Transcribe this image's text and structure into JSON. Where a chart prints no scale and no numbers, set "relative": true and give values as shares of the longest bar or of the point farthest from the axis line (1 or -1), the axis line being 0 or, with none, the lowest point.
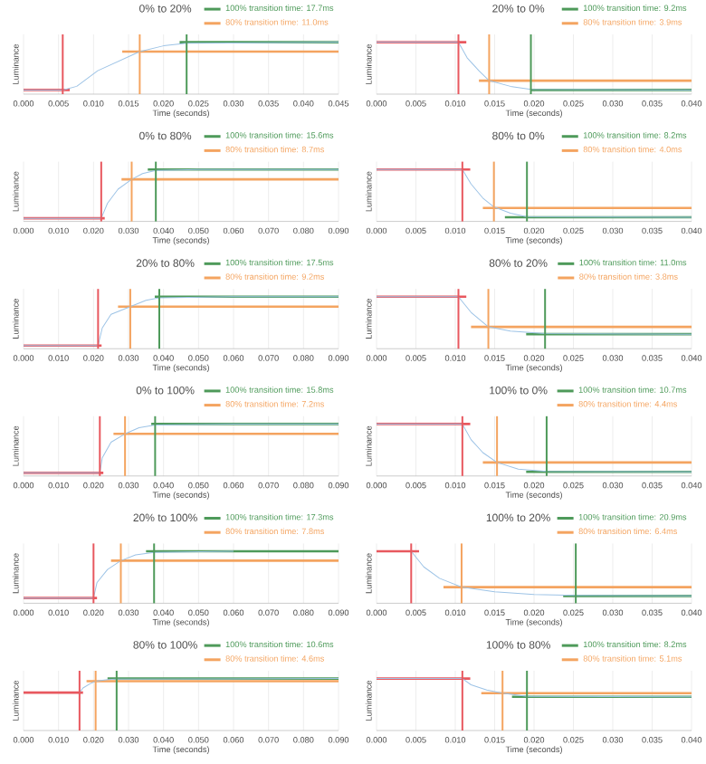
{
  "chart_data": [
    {
      "type": "line",
      "title": "0% to 20%",
      "xlabel": "Time (seconds)",
      "ylabel": "Luminance",
      "relative": true,
      "grid": "x",
      "legend": "top right",
      "xlim": [
        0,
        0.045
      ],
      "xticks": [
        {
          "value": 0,
          "label": "0.000"
        },
        {
          "value": 0.005,
          "label": "0.005"
        },
        {
          "value": 0.01,
          "label": "0.010"
        },
        {
          "value": 0.015,
          "label": "0.015"
        },
        {
          "value": 0.02,
          "label": "0.020"
        },
        {
          "value": 0.025,
          "label": "0.025"
        },
        {
          "value": 0.03,
          "label": "0.030"
        },
        {
          "value": 0.035,
          "label": "0.035"
        },
        {
          "value": 0.04,
          "label": "0.040"
        },
        {
          "value": 0.045,
          "label": "0.045"
        }
      ],
      "series": [
        {
          "color": "#9dc3e6",
          "x": [
            0,
            0.0056,
            0.0076,
            0.0106,
            0.0166,
            0.02,
            0.0233,
            0.045
          ],
          "values": [
            0.08,
            0.08,
            0.15,
            0.45,
            0.82,
            0.93,
            0.98,
            1
          ]
        },
        {
          "color": "#e8585f",
          "x": [
            0,
            0.0066
          ],
          "values": [
            0.08,
            0.08
          ]
        },
        {
          "name": "100% transition time: 17.7ms",
          "color": "#4e9a5a",
          "x": [
            0.0223,
            0.045
          ],
          "values": [
            1,
            1
          ]
        },
        {
          "name": "80% transition time: 11.0ms",
          "color": "#f4a460",
          "x": [
            0.0141,
            0.045
          ],
          "values": [
            0.82,
            0.82
          ]
        }
      ],
      "ref_lines": [
        {
          "axis": "x",
          "value": 0.0056,
          "color": "#e8585f"
        },
        {
          "axis": "x",
          "value": 0.0166,
          "color": "#f4a460"
        },
        {
          "axis": "x",
          "value": 0.0233,
          "color": "#4e9a5a"
        }
      ]
    },
    {
      "type": "line",
      "title": "20% to 0%",
      "xlabel": "Time (seconds)",
      "ylabel": "Luminance",
      "relative": true,
      "grid": "x",
      "legend": "top right",
      "xlim": [
        0,
        0.04
      ],
      "xticks": [
        {
          "value": 0,
          "label": "0.000"
        },
        {
          "value": 0.005,
          "label": "0.005"
        },
        {
          "value": 0.01,
          "label": "0.010"
        },
        {
          "value": 0.015,
          "label": "0.015"
        },
        {
          "value": 0.02,
          "label": "0.020"
        },
        {
          "value": 0.025,
          "label": "0.025"
        },
        {
          "value": 0.03,
          "label": "0.030"
        },
        {
          "value": 0.035,
          "label": "0.035"
        },
        {
          "value": 0.04,
          "label": "0.040"
        }
      ],
      "series": [
        {
          "color": "#9dc3e6",
          "x": [
            0,
            0.0104,
            0.0115,
            0.013,
            0.0143,
            0.017,
            0.0196,
            0.04
          ],
          "values": [
            1,
            1,
            0.7,
            0.45,
            0.26,
            0.15,
            0.09,
            0.08
          ]
        },
        {
          "color": "#e8585f",
          "x": [
            0,
            0.0114
          ],
          "values": [
            1,
            1
          ]
        },
        {
          "name": "100% transition time: 9.2ms",
          "color": "#4e9a5a",
          "x": [
            0.0196,
            0.04
          ],
          "values": [
            0.08,
            0.08
          ]
        },
        {
          "name": "80% transition time: 3.9ms",
          "color": "#f4a460",
          "x": [
            0.013,
            0.04
          ],
          "values": [
            0.26,
            0.26
          ]
        }
      ],
      "ref_lines": [
        {
          "axis": "x",
          "value": 0.0104,
          "color": "#e8585f"
        },
        {
          "axis": "x",
          "value": 0.0143,
          "color": "#f4a460"
        },
        {
          "axis": "x",
          "value": 0.0196,
          "color": "#4e9a5a"
        }
      ]
    },
    {
      "type": "line",
      "title": "0% to 80%",
      "xlabel": "Time (seconds)",
      "ylabel": "Luminance",
      "relative": true,
      "grid": "x",
      "legend": "top right",
      "xlim": [
        0,
        0.09
      ],
      "xticks": [
        {
          "value": 0,
          "label": "0.000"
        },
        {
          "value": 0.01,
          "label": "0.010"
        },
        {
          "value": 0.02,
          "label": "0.020"
        },
        {
          "value": 0.03,
          "label": "0.030"
        },
        {
          "value": 0.04,
          "label": "0.040"
        },
        {
          "value": 0.05,
          "label": "0.050"
        },
        {
          "value": 0.06,
          "label": "0.060"
        },
        {
          "value": 0.07,
          "label": "0.070"
        },
        {
          "value": 0.08,
          "label": "0.080"
        },
        {
          "value": 0.09,
          "label": "0.090"
        }
      ],
      "series": [
        {
          "color": "#9dc3e6",
          "x": [
            0,
            0.0222,
            0.024,
            0.027,
            0.0309,
            0.034,
            0.0378,
            0.05,
            0.09
          ],
          "values": [
            0.06,
            0.06,
            0.35,
            0.62,
            0.81,
            0.92,
            0.98,
            1,
            1
          ]
        },
        {
          "color": "#e8585f",
          "x": [
            0,
            0.0232
          ],
          "values": [
            0.06,
            0.06
          ]
        },
        {
          "name": "100% transition time: 15.6ms",
          "color": "#4e9a5a",
          "x": [
            0.0355,
            0.09
          ],
          "values": [
            1,
            1
          ]
        },
        {
          "name": "80% transition time: 8.7ms",
          "color": "#f4a460",
          "x": [
            0.028,
            0.09
          ],
          "values": [
            0.81,
            0.81
          ]
        }
      ],
      "ref_lines": [
        {
          "axis": "x",
          "value": 0.0222,
          "color": "#e8585f"
        },
        {
          "axis": "x",
          "value": 0.0309,
          "color": "#f4a460"
        },
        {
          "axis": "x",
          "value": 0.0378,
          "color": "#4e9a5a"
        }
      ]
    },
    {
      "type": "line",
      "title": "80% to 0%",
      "xlabel": "Time (seconds)",
      "ylabel": "Luminance",
      "relative": true,
      "grid": "x",
      "legend": "top right",
      "xlim": [
        0,
        0.04
      ],
      "xticks": [
        {
          "value": 0,
          "label": "0.000"
        },
        {
          "value": 0.005,
          "label": "0.005"
        },
        {
          "value": 0.01,
          "label": "0.010"
        },
        {
          "value": 0.015,
          "label": "0.015"
        },
        {
          "value": 0.02,
          "label": "0.020"
        },
        {
          "value": 0.025,
          "label": "0.025"
        },
        {
          "value": 0.03,
          "label": "0.030"
        },
        {
          "value": 0.035,
          "label": "0.035"
        },
        {
          "value": 0.04,
          "label": "0.040"
        }
      ],
      "series": [
        {
          "color": "#9dc3e6",
          "x": [
            0,
            0.0109,
            0.012,
            0.0135,
            0.0149,
            0.017,
            0.0191,
            0.04
          ],
          "values": [
            1,
            1,
            0.72,
            0.45,
            0.28,
            0.16,
            0.09,
            0.08
          ]
        },
        {
          "color": "#e8585f",
          "x": [
            0,
            0.0119
          ],
          "values": [
            1,
            1
          ]
        },
        {
          "name": "100% transition time: 8.2ms",
          "color": "#4e9a5a",
          "x": [
            0.0163,
            0.04
          ],
          "values": [
            0.08,
            0.08
          ]
        },
        {
          "name": "80% transition time: 4.0ms",
          "color": "#f4a460",
          "x": [
            0.0135,
            0.04
          ],
          "values": [
            0.26,
            0.26
          ]
        }
      ],
      "ref_lines": [
        {
          "axis": "x",
          "value": 0.0109,
          "color": "#e8585f"
        },
        {
          "axis": "x",
          "value": 0.0149,
          "color": "#f4a460"
        },
        {
          "axis": "x",
          "value": 0.0191,
          "color": "#4e9a5a"
        }
      ]
    },
    {
      "type": "line",
      "title": "20% to 80%",
      "xlabel": "Time (seconds)",
      "ylabel": "Luminance",
      "relative": true,
      "grid": "x",
      "legend": "top right",
      "xlim": [
        0,
        0.09
      ],
      "xticks": [
        {
          "value": 0,
          "label": "0.000"
        },
        {
          "value": 0.01,
          "label": "0.010"
        },
        {
          "value": 0.02,
          "label": "0.020"
        },
        {
          "value": 0.03,
          "label": "0.030"
        },
        {
          "value": 0.04,
          "label": "0.040"
        },
        {
          "value": 0.05,
          "label": "0.050"
        },
        {
          "value": 0.06,
          "label": "0.060"
        },
        {
          "value": 0.07,
          "label": "0.070"
        },
        {
          "value": 0.08,
          "label": "0.080"
        },
        {
          "value": 0.09,
          "label": "0.090"
        }
      ],
      "series": [
        {
          "color": "#9dc3e6",
          "x": [
            0,
            0.0213,
            0.0225,
            0.025,
            0.0305,
            0.035,
            0.0388,
            0.06,
            0.09
          ],
          "values": [
            0.06,
            0.06,
            0.4,
            0.66,
            0.81,
            0.93,
            0.98,
            1,
            1
          ]
        },
        {
          "color": "#e8585f",
          "x": [
            0,
            0.0223
          ],
          "values": [
            0.06,
            0.06
          ]
        },
        {
          "name": "100% transition time: 17.5ms",
          "color": "#4e9a5a",
          "x": [
            0.0375,
            0.09
          ],
          "values": [
            1,
            1
          ]
        },
        {
          "name": "80% transition time: 9.2ms",
          "color": "#f4a460",
          "x": [
            0.027,
            0.09
          ],
          "values": [
            0.81,
            0.81
          ]
        }
      ],
      "ref_lines": [
        {
          "axis": "x",
          "value": 0.0213,
          "color": "#e8585f"
        },
        {
          "axis": "x",
          "value": 0.0305,
          "color": "#f4a460"
        },
        {
          "axis": "x",
          "value": 0.0388,
          "color": "#4e9a5a"
        }
      ]
    },
    {
      "type": "line",
      "title": "80% to 20%",
      "xlabel": "Time (seconds)",
      "ylabel": "Luminance",
      "relative": true,
      "grid": "x",
      "legend": "top right",
      "xlim": [
        0,
        0.04
      ],
      "xticks": [
        {
          "value": 0,
          "label": "0.000"
        },
        {
          "value": 0.005,
          "label": "0.005"
        },
        {
          "value": 0.01,
          "label": "0.010"
        },
        {
          "value": 0.015,
          "label": "0.015"
        },
        {
          "value": 0.02,
          "label": "0.020"
        },
        {
          "value": 0.025,
          "label": "0.025"
        },
        {
          "value": 0.03,
          "label": "0.030"
        },
        {
          "value": 0.035,
          "label": "0.035"
        },
        {
          "value": 0.04,
          "label": "0.040"
        }
      ],
      "series": [
        {
          "color": "#9dc3e6",
          "x": [
            0,
            0.0104,
            0.012,
            0.0142,
            0.017,
            0.0214,
            0.04
          ],
          "values": [
            1,
            1,
            0.7,
            0.42,
            0.34,
            0.29,
            0.28
          ]
        },
        {
          "color": "#e8585f",
          "x": [
            0,
            0.0114
          ],
          "values": [
            1,
            1
          ]
        },
        {
          "name": "100% transition time: 11.0ms",
          "color": "#4e9a5a",
          "x": [
            0.019,
            0.04
          ],
          "values": [
            0.28,
            0.28
          ]
        },
        {
          "name": "80% transition time: 3.8ms",
          "color": "#f4a460",
          "x": [
            0.012,
            0.04
          ],
          "values": [
            0.42,
            0.42
          ]
        }
      ],
      "ref_lines": [
        {
          "axis": "x",
          "value": 0.0104,
          "color": "#e8585f"
        },
        {
          "axis": "x",
          "value": 0.0142,
          "color": "#f4a460"
        },
        {
          "axis": "x",
          "value": 0.0214,
          "color": "#4e9a5a"
        }
      ]
    },
    {
      "type": "line",
      "title": "0% to 100%",
      "xlabel": "Time (seconds)",
      "ylabel": "Luminance",
      "relative": true,
      "grid": "x",
      "legend": "top right",
      "xlim": [
        0,
        0.09
      ],
      "xticks": [
        {
          "value": 0,
          "label": "0.000"
        },
        {
          "value": 0.01,
          "label": "0.010"
        },
        {
          "value": 0.02,
          "label": "0.020"
        },
        {
          "value": 0.03,
          "label": "0.030"
        },
        {
          "value": 0.04,
          "label": "0.040"
        },
        {
          "value": 0.05,
          "label": "0.050"
        },
        {
          "value": 0.06,
          "label": "0.060"
        },
        {
          "value": 0.07,
          "label": "0.070"
        },
        {
          "value": 0.08,
          "label": "0.080"
        },
        {
          "value": 0.09,
          "label": "0.090"
        }
      ],
      "series": [
        {
          "color": "#9dc3e6",
          "x": [
            0,
            0.0218,
            0.0225,
            0.025,
            0.029,
            0.033,
            0.0376,
            0.06,
            0.09
          ],
          "values": [
            0.06,
            0.06,
            0.35,
            0.65,
            0.81,
            0.93,
            0.98,
            1,
            1
          ]
        },
        {
          "color": "#e8585f",
          "x": [
            0,
            0.0228
          ],
          "values": [
            0.06,
            0.06
          ]
        },
        {
          "name": "100% transition time: 15.8ms",
          "color": "#4e9a5a",
          "x": [
            0.0365,
            0.09
          ],
          "values": [
            1,
            1
          ]
        },
        {
          "name": "80% transition time: 7.2ms",
          "color": "#f4a460",
          "x": [
            0.0257,
            0.09
          ],
          "values": [
            0.81,
            0.81
          ]
        }
      ],
      "ref_lines": [
        {
          "axis": "x",
          "value": 0.0218,
          "color": "#e8585f"
        },
        {
          "axis": "x",
          "value": 0.029,
          "color": "#f4a460"
        },
        {
          "axis": "x",
          "value": 0.0376,
          "color": "#4e9a5a"
        }
      ]
    },
    {
      "type": "line",
      "title": "100% to 0%",
      "xlabel": "Time (seconds)",
      "ylabel": "Luminance",
      "relative": true,
      "grid": "x",
      "legend": "top right",
      "xlim": [
        0,
        0.04
      ],
      "xticks": [
        {
          "value": 0,
          "label": "0.000"
        },
        {
          "value": 0.005,
          "label": "0.005"
        },
        {
          "value": 0.01,
          "label": "0.010"
        },
        {
          "value": 0.015,
          "label": "0.015"
        },
        {
          "value": 0.02,
          "label": "0.020"
        },
        {
          "value": 0.025,
          "label": "0.025"
        },
        {
          "value": 0.03,
          "label": "0.030"
        },
        {
          "value": 0.035,
          "label": "0.035"
        },
        {
          "value": 0.04,
          "label": "0.040"
        }
      ],
      "series": [
        {
          "color": "#9dc3e6",
          "x": [
            0,
            0.0109,
            0.012,
            0.0135,
            0.0153,
            0.018,
            0.0216,
            0.04
          ],
          "values": [
            1,
            1,
            0.7,
            0.45,
            0.26,
            0.13,
            0.09,
            0.08
          ]
        },
        {
          "color": "#e8585f",
          "x": [
            0,
            0.0119
          ],
          "values": [
            1,
            1
          ]
        },
        {
          "name": "100% transition time: 10.7ms",
          "color": "#4e9a5a",
          "x": [
            0.019,
            0.04
          ],
          "values": [
            0.08,
            0.08
          ]
        },
        {
          "name": "80% transition time: 4.4ms",
          "color": "#f4a460",
          "x": [
            0.0135,
            0.04
          ],
          "values": [
            0.26,
            0.26
          ]
        }
      ],
      "ref_lines": [
        {
          "axis": "x",
          "value": 0.0109,
          "color": "#e8585f"
        },
        {
          "axis": "x",
          "value": 0.0153,
          "color": "#f4a460"
        },
        {
          "axis": "x",
          "value": 0.0216,
          "color": "#4e9a5a"
        }
      ]
    },
    {
      "type": "line",
      "title": "20% to 100%",
      "xlabel": "Time (seconds)",
      "ylabel": "Luminance",
      "relative": true,
      "grid": "x",
      "legend": "top right",
      "xlim": [
        0,
        0.09
      ],
      "xticks": [
        {
          "value": 0,
          "label": "0.000"
        },
        {
          "value": 0.01,
          "label": "0.010"
        },
        {
          "value": 0.02,
          "label": "0.020"
        },
        {
          "value": 0.03,
          "label": "0.030"
        },
        {
          "value": 0.04,
          "label": "0.040"
        },
        {
          "value": 0.05,
          "label": "0.050"
        },
        {
          "value": 0.06,
          "label": "0.060"
        },
        {
          "value": 0.07,
          "label": "0.070"
        },
        {
          "value": 0.08,
          "label": "0.080"
        },
        {
          "value": 0.09,
          "label": "0.090"
        }
      ],
      "series": [
        {
          "color": "#9dc3e6",
          "x": [
            0,
            0.02,
            0.021,
            0.024,
            0.0278,
            0.032,
            0.0373,
            0.06
          ],
          "values": [
            0.1,
            0.1,
            0.4,
            0.65,
            0.82,
            0.93,
            0.98,
            1
          ]
        },
        {
          "color": "#e8585f",
          "x": [
            0,
            0.021
          ],
          "values": [
            0.1,
            0.1
          ]
        },
        {
          "name": "100% transition time: 17.3ms",
          "color": "#4e9a5a",
          "x": [
            0.035,
            0.09
          ],
          "values": [
            1,
            1
          ]
        },
        {
          "name": "80% transition time: 7.8ms",
          "color": "#f4a460",
          "x": [
            0.025,
            0.09
          ],
          "values": [
            0.82,
            0.82
          ]
        }
      ],
      "ref_lines": [
        {
          "axis": "x",
          "value": 0.02,
          "color": "#e8585f"
        },
        {
          "axis": "x",
          "value": 0.0278,
          "color": "#f4a460"
        },
        {
          "axis": "x",
          "value": 0.0373,
          "color": "#4e9a5a"
        }
      ]
    },
    {
      "type": "line",
      "title": "100% to 20%",
      "xlabel": "Time (seconds)",
      "ylabel": "Luminance",
      "relative": true,
      "grid": "x",
      "legend": "top right",
      "xlim": [
        0,
        0.04
      ],
      "xticks": [
        {
          "value": 0,
          "label": "0.000"
        },
        {
          "value": 0.005,
          "label": "0.005"
        },
        {
          "value": 0.01,
          "label": "0.010"
        },
        {
          "value": 0.015,
          "label": "0.015"
        },
        {
          "value": 0.02,
          "label": "0.020"
        },
        {
          "value": 0.025,
          "label": "0.025"
        },
        {
          "value": 0.03,
          "label": "0.030"
        },
        {
          "value": 0.035,
          "label": "0.035"
        },
        {
          "value": 0.04,
          "label": "0.040"
        }
      ],
      "series": [
        {
          "color": "#9dc3e6",
          "x": [
            0.0044,
            0.006,
            0.008,
            0.0108,
            0.015,
            0.02,
            0.0253,
            0.04
          ],
          "values": [
            1,
            0.7,
            0.48,
            0.31,
            0.22,
            0.17,
            0.15,
            0.14
          ]
        },
        {
          "color": "#e8585f",
          "x": [
            0,
            0.0054
          ],
          "values": [
            1,
            1
          ]
        },
        {
          "name": "100% transition time: 20.9ms",
          "color": "#4e9a5a",
          "x": [
            0.0237,
            0.04
          ],
          "values": [
            0.14,
            0.14
          ]
        },
        {
          "name": "80% transition time: 6.4ms",
          "color": "#f4a460",
          "x": [
            0.0085,
            0.04
          ],
          "values": [
            0.31,
            0.31
          ]
        }
      ],
      "ref_lines": [
        {
          "axis": "x",
          "value": 0.0044,
          "color": "#e8585f"
        },
        {
          "axis": "x",
          "value": 0.0108,
          "color": "#f4a460"
        },
        {
          "axis": "x",
          "value": 0.0253,
          "color": "#4e9a5a"
        }
      ]
    },
    {
      "type": "line",
      "title": "80% to 100%",
      "xlabel": "Time (seconds)",
      "ylabel": "Luminance",
      "relative": true,
      "grid": "x",
      "legend": "top right",
      "xlim": [
        0,
        0.09
      ],
      "xticks": [
        {
          "value": 0,
          "label": "0.000"
        },
        {
          "value": 0.01,
          "label": "0.010"
        },
        {
          "value": 0.02,
          "label": "0.020"
        },
        {
          "value": 0.03,
          "label": "0.030"
        },
        {
          "value": 0.04,
          "label": "0.040"
        },
        {
          "value": 0.05,
          "label": "0.050"
        },
        {
          "value": 0.06,
          "label": "0.060"
        },
        {
          "value": 0.07,
          "label": "0.070"
        },
        {
          "value": 0.08,
          "label": "0.080"
        },
        {
          "value": 0.09,
          "label": "0.090"
        }
      ],
      "series": [
        {
          "color": "#9dc3e6",
          "x": [
            0.016,
            0.017,
            0.019,
            0.0206,
            0.024,
            0.0266,
            0.09
          ],
          "values": [
            0.73,
            0.82,
            0.9,
            0.95,
            0.98,
            0.99,
            1
          ]
        },
        {
          "color": "#e8585f",
          "x": [
            0,
            0.017
          ],
          "values": [
            0.73,
            0.73
          ]
        },
        {
          "name": "100% transition time: 10.6ms",
          "color": "#4e9a5a",
          "x": [
            0.024,
            0.09
          ],
          "values": [
            1,
            1
          ]
        },
        {
          "name": "80% transition time: 4.6ms",
          "color": "#f4a460",
          "x": [
            0.018,
            0.09
          ],
          "values": [
            0.95,
            0.95
          ]
        }
      ],
      "ref_lines": [
        {
          "axis": "x",
          "value": 0.016,
          "color": "#e8585f"
        },
        {
          "axis": "x",
          "value": 0.0206,
          "color": "#f4a460"
        },
        {
          "axis": "x",
          "value": 0.0266,
          "color": "#4e9a5a"
        }
      ]
    },
    {
      "type": "line",
      "title": "100% to 80%",
      "xlabel": "Time (seconds)",
      "ylabel": "Luminance",
      "relative": true,
      "grid": "x",
      "legend": "top right",
      "xlim": [
        0,
        0.04
      ],
      "xticks": [
        {
          "value": 0,
          "label": "0.000"
        },
        {
          "value": 0.005,
          "label": "0.005"
        },
        {
          "value": 0.01,
          "label": "0.010"
        },
        {
          "value": 0.015,
          "label": "0.015"
        },
        {
          "value": 0.02,
          "label": "0.020"
        },
        {
          "value": 0.025,
          "label": "0.025"
        },
        {
          "value": 0.03,
          "label": "0.030"
        },
        {
          "value": 0.035,
          "label": "0.035"
        },
        {
          "value": 0.04,
          "label": "0.040"
        }
      ],
      "series": [
        {
          "color": "#9dc3e6",
          "x": [
            0,
            0.0109,
            0.012,
            0.014,
            0.016,
            0.018,
            0.0191,
            0.04
          ],
          "values": [
            1,
            1,
            0.88,
            0.78,
            0.72,
            0.68,
            0.66,
            0.65
          ]
        },
        {
          "color": "#e8585f",
          "x": [
            0,
            0.0119
          ],
          "values": [
            1,
            1
          ]
        },
        {
          "name": "100% transition time: 8.2ms",
          "color": "#4e9a5a",
          "x": [
            0.0172,
            0.04
          ],
          "values": [
            0.65,
            0.65
          ]
        },
        {
          "name": "80% transition time: 5.1ms",
          "color": "#f4a460",
          "x": [
            0.0133,
            0.04
          ],
          "values": [
            0.72,
            0.72
          ]
        }
      ],
      "ref_lines": [
        {
          "axis": "x",
          "value": 0.0109,
          "color": "#e8585f"
        },
        {
          "axis": "x",
          "value": 0.016,
          "color": "#f4a460"
        },
        {
          "axis": "x",
          "value": 0.0191,
          "color": "#4e9a5a"
        }
      ]
    }
  ]
}
